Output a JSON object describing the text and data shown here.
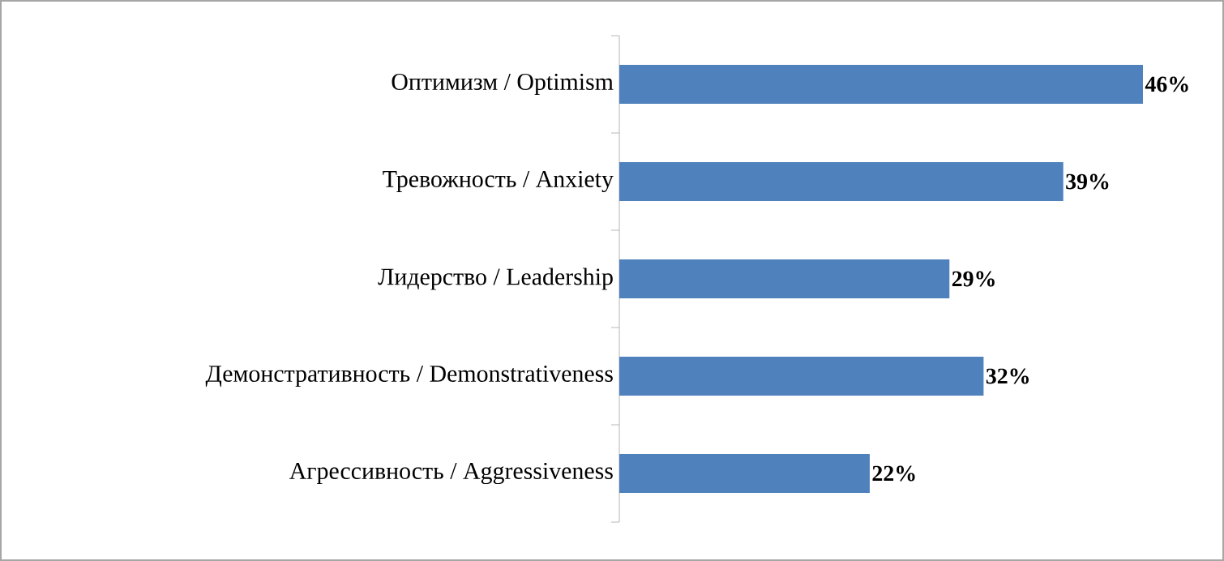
{
  "chart_data": {
    "type": "bar",
    "orientation": "horizontal",
    "categories": [
      "Оптимизм / Optimism",
      "Тревожность / Anxiety",
      "Лидерство / Leadership",
      "Демонстративность / Demonstrativeness",
      "Агрессивность / Aggressiveness"
    ],
    "values": [
      46,
      39,
      29,
      32,
      22
    ],
    "value_labels": [
      "46%",
      "39%",
      "29%",
      "32%",
      "22%"
    ],
    "color": "#4f81bd"
  }
}
